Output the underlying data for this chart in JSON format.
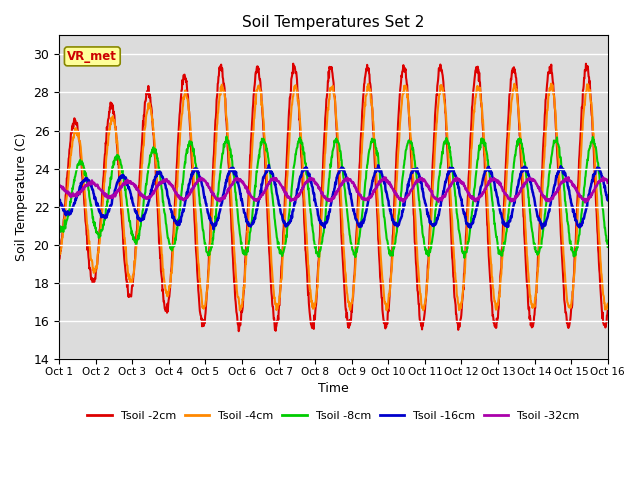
{
  "title": "Soil Temperatures Set 2",
  "xlabel": "Time",
  "ylabel": "Soil Temperature (C)",
  "ylim": [
    14,
    31
  ],
  "xlim": [
    0,
    15
  ],
  "yticks": [
    14,
    16,
    18,
    20,
    22,
    24,
    26,
    28,
    30
  ],
  "xtick_labels": [
    "Oct 1",
    "Oct 2",
    "Oct 3",
    "Oct 4",
    "Oct 5",
    "Oct 6",
    "Oct 7",
    "Oct 8",
    "Oct 9",
    "Oct 10",
    "Oct 11",
    "Oct 12",
    "Oct 13",
    "Oct 14",
    "Oct 15",
    "Oct 16"
  ],
  "background_color": "#dcdcdc",
  "annotation_text": "VR_met",
  "annotation_color": "#cc0000",
  "annotation_bg": "#ffff99",
  "annotation_border": "#888800",
  "series_colors": [
    "#dd0000",
    "#ff8800",
    "#00cc00",
    "#0000cc",
    "#aa00aa"
  ],
  "series_labels": [
    "Tsoil -2cm",
    "Tsoil -4cm",
    "Tsoil -8cm",
    "Tsoil -16cm",
    "Tsoil -32cm"
  ],
  "series_linewidths": [
    1.5,
    1.5,
    1.5,
    1.8,
    1.8
  ],
  "n_points": 1440,
  "days": 15,
  "mean_temp": 22.5,
  "amp_2cm": 6.8,
  "amp_4cm": 5.8,
  "amp_8cm": 3.0,
  "amp_16cm": 1.5,
  "amp_32cm": 0.55,
  "phase_2cm": -1.1,
  "phase_4cm": -1.3,
  "phase_8cm": -2.1,
  "phase_16cm": -3.0,
  "phase_32cm": -4.0,
  "mean_32cm": 22.9
}
